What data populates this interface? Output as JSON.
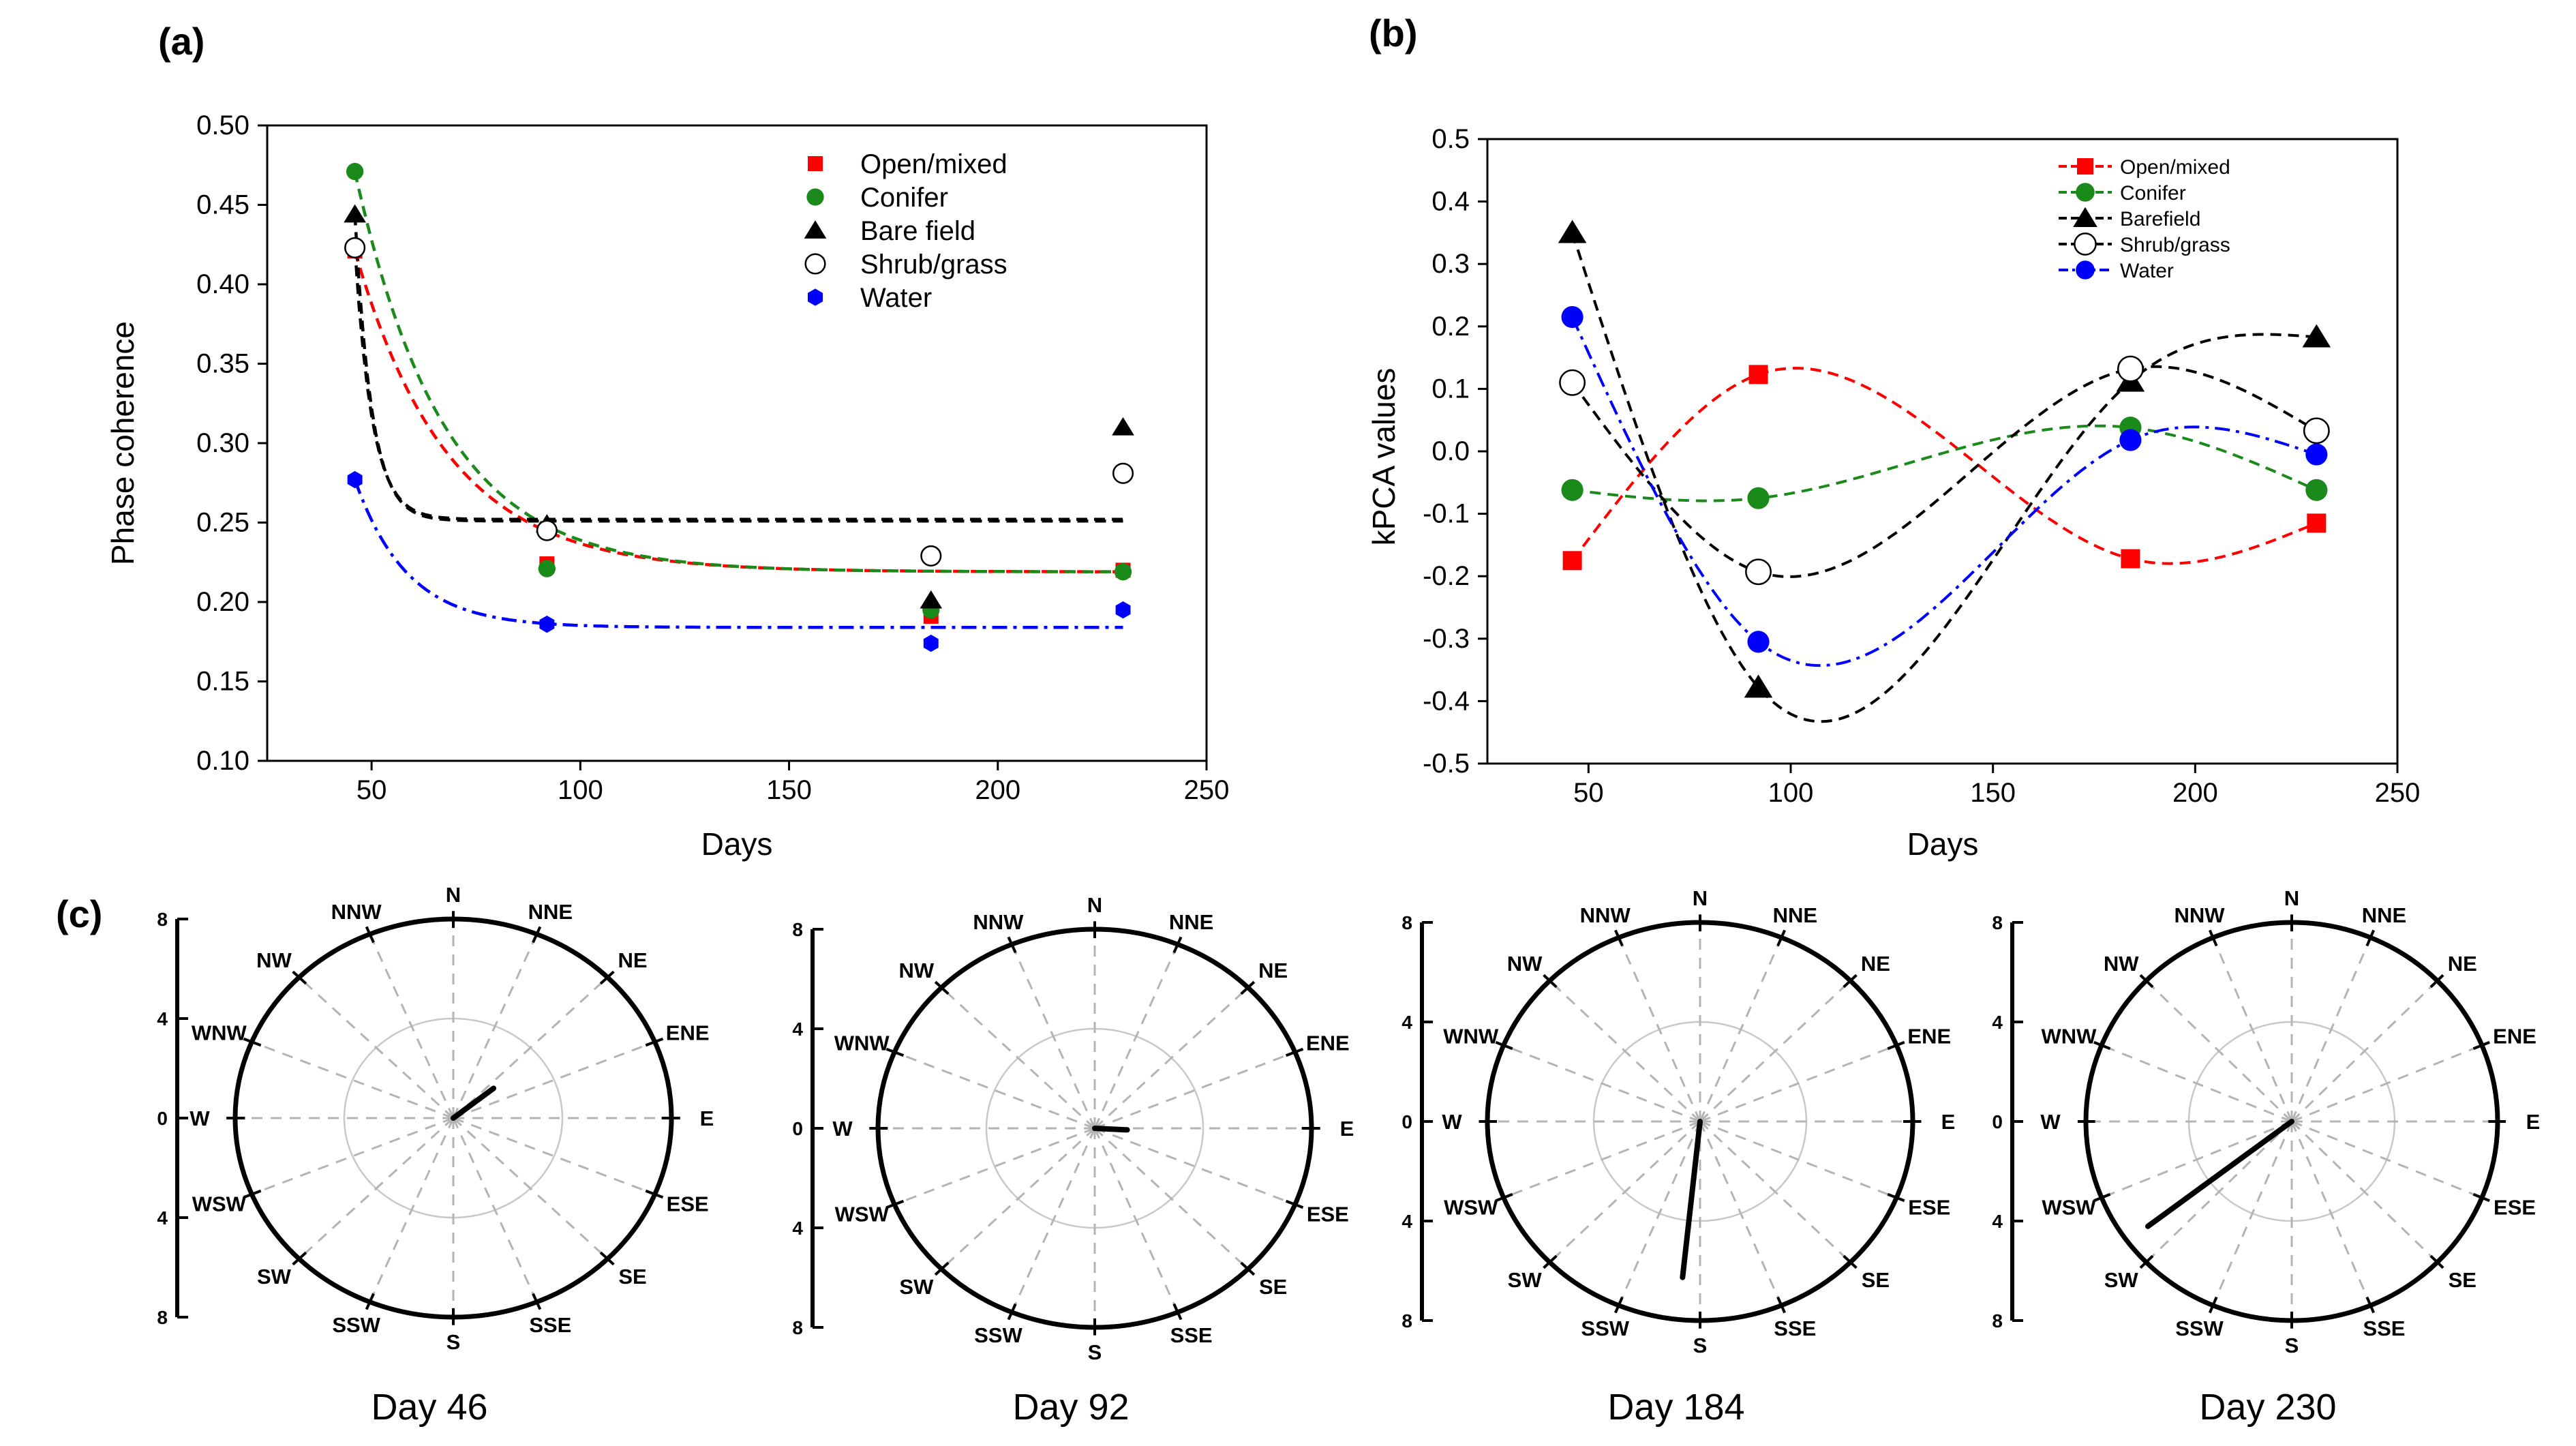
{
  "figure": {
    "panel_labels": [
      "(a)",
      "(b)",
      "(c)"
    ]
  },
  "chart_data": [
    {
      "id": "a",
      "type": "scatter",
      "title": "",
      "xlabel": "Days",
      "ylabel": "Phase coherence",
      "xlim": [
        25,
        250
      ],
      "ylim": [
        0.1,
        0.5
      ],
      "xticks": [
        50,
        100,
        150,
        200,
        250
      ],
      "yticks": [
        0.1,
        0.15,
        0.2,
        0.25,
        0.3,
        0.35,
        0.4,
        0.45,
        0.5
      ],
      "ytick_labels": [
        "0.10",
        "0.15",
        "0.20",
        "0.25",
        "0.30",
        "0.35",
        "0.40",
        "0.45",
        "0.50"
      ],
      "grid": false,
      "legend_position": "top-right",
      "x": [
        46,
        92,
        184,
        230
      ],
      "series": [
        {
          "name": "Open/mixed",
          "color": "#ff0000",
          "marker": "square",
          "values": [
            0.421,
            0.224,
            0.191,
            0.22
          ],
          "fit": {
            "style": "dash",
            "a": 0.219,
            "b": 0.202,
            "c": 0.045,
            "x0": 46
          }
        },
        {
          "name": "Conifer",
          "color": "#1a8a1a",
          "marker": "circle",
          "values": [
            0.471,
            0.221,
            0.195,
            0.219
          ],
          "fit": {
            "style": "dash",
            "a": 0.219,
            "b": 0.252,
            "c": 0.047,
            "x0": 46
          }
        },
        {
          "name": "Bare field",
          "color": "#000000",
          "marker": "triangle",
          "values": [
            0.444,
            0.249,
            0.201,
            0.31
          ],
          "fit": {
            "style": "dash",
            "a": 0.251,
            "b": 0.193,
            "c": 0.25,
            "x0": 46
          }
        },
        {
          "name": "Shrub/grass",
          "color": "#000000",
          "marker": "open-circle",
          "values": [
            0.423,
            0.245,
            0.229,
            0.281
          ],
          "fit": {
            "style": "dash",
            "a": 0.252,
            "b": 0.171,
            "c": 0.24,
            "x0": 46
          }
        },
        {
          "name": "Water",
          "color": "#0000ff",
          "marker": "hexagon",
          "values": [
            0.277,
            0.186,
            0.174,
            0.195
          ],
          "fit": {
            "style": "dashdot",
            "a": 0.184,
            "b": 0.093,
            "c": 0.08,
            "x0": 46
          }
        }
      ]
    },
    {
      "id": "b",
      "type": "line",
      "title": "",
      "xlabel": "Days",
      "ylabel": "kPCA values",
      "xlim": [
        25,
        250
      ],
      "ylim": [
        -0.5,
        0.5
      ],
      "xticks": [
        50,
        100,
        150,
        200,
        250
      ],
      "yticks": [
        -0.5,
        -0.4,
        -0.3,
        -0.2,
        -0.1,
        0.0,
        0.1,
        0.2,
        0.3,
        0.4,
        0.5
      ],
      "ytick_labels": [
        "-0.5",
        "-0.4",
        "-0.3",
        "-0.2",
        "-0.1",
        "0.0",
        "0.1",
        "0.2",
        "0.3",
        "0.4",
        "0.5"
      ],
      "grid": false,
      "legend_position": "top-right",
      "x": [
        46,
        92,
        184,
        230
      ],
      "series": [
        {
          "name": "Open/mixed",
          "color": "#ff0000",
          "marker": "square",
          "style": "dash",
          "values": [
            -0.175,
            0.123,
            -0.172,
            -0.115
          ]
        },
        {
          "name": "Conifer",
          "color": "#1a8a1a",
          "marker": "circle",
          "style": "dash",
          "values": [
            -0.062,
            -0.075,
            0.038,
            -0.062
          ]
        },
        {
          "name": "Barefield",
          "color": "#000000",
          "marker": "triangle",
          "style": "dash",
          "values": [
            0.35,
            -0.378,
            0.112,
            0.183
          ]
        },
        {
          "name": "Shrub/grass",
          "color": "#000000",
          "marker": "open-circle",
          "style": "dash",
          "values": [
            0.11,
            -0.193,
            0.132,
            0.033
          ]
        },
        {
          "name": "Water",
          "color": "#0000ff",
          "marker": "circle",
          "style": "dashdot",
          "values": [
            0.215,
            -0.305,
            0.018,
            -0.005
          ]
        }
      ]
    },
    {
      "id": "c",
      "type": "polar",
      "title": "",
      "radial_ticks": [
        "8",
        "4",
        "0",
        "4",
        "8"
      ],
      "rmax": 8,
      "directions": [
        "N",
        "NNE",
        "NE",
        "ENE",
        "E",
        "ESE",
        "SE",
        "SSE",
        "S",
        "SSW",
        "SW",
        "WSW",
        "W",
        "WNW",
        "NW",
        "NNW"
      ],
      "plots": [
        {
          "label": "Day 46",
          "vector": {
            "angle_deg": 51,
            "magnitude": 1.9
          }
        },
        {
          "label": "Day 92",
          "vector": {
            "angle_deg": 93,
            "magnitude": 1.2
          }
        },
        {
          "label": "Day 184",
          "vector": {
            "angle_deg": 186,
            "magnitude": 6.3
          }
        },
        {
          "label": "Day 230",
          "vector": {
            "angle_deg": 233,
            "magnitude": 7.0
          }
        }
      ]
    }
  ]
}
